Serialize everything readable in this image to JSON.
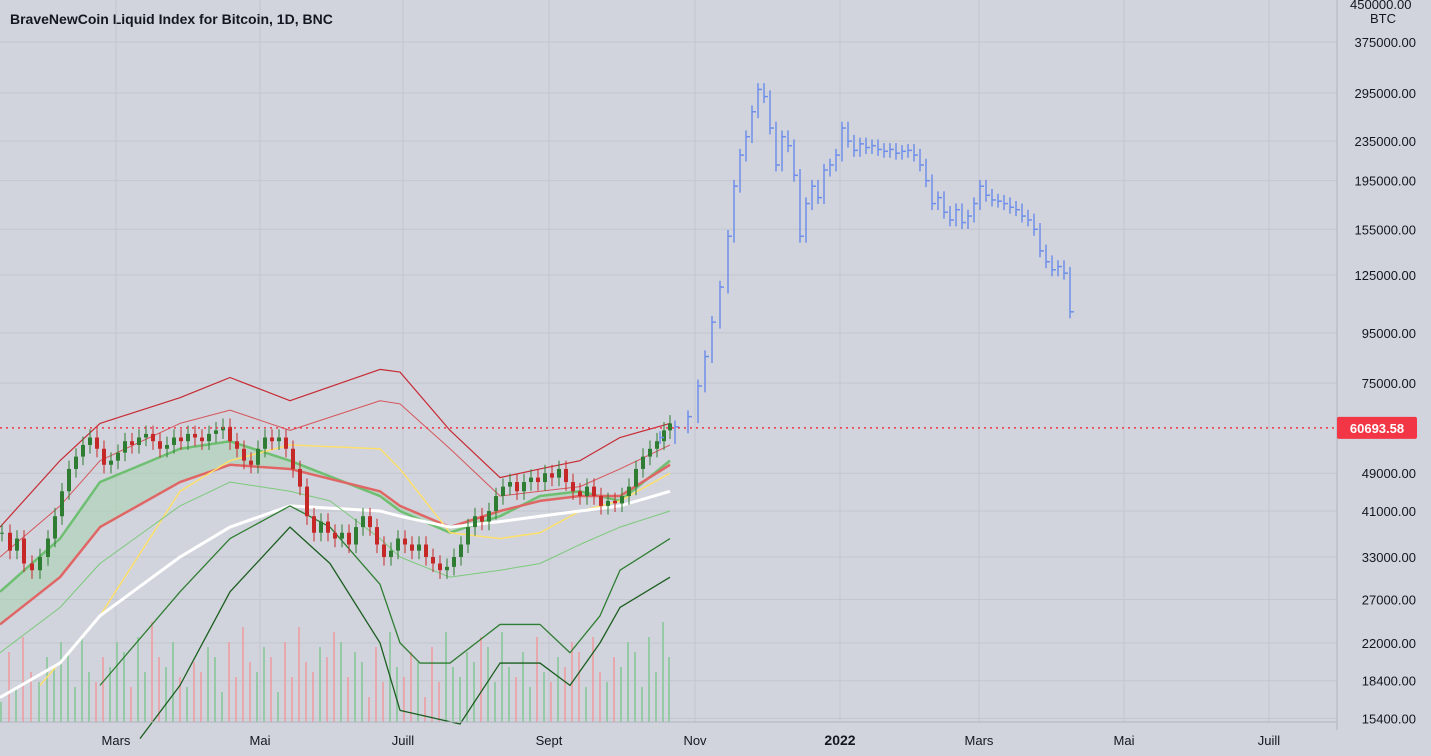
{
  "title": "BraveNewCoin Liquid Index for Bitcoin, 1D, BNC",
  "colors": {
    "background": "#d1d4dc",
    "projection": "#6e8eea",
    "price_line": "#f23645",
    "grid": "#c3c6ce"
  },
  "chart_data": {
    "type": "bar",
    "symbol": "BNC",
    "interval": "1D",
    "scale": "log",
    "y_unit": "BTC",
    "current_price": "60693.58",
    "y_ticks": [
      "375000.00",
      "295000.00",
      "235000.00",
      "195000.00",
      "155000.00",
      "125000.00",
      "95000.00",
      "75000.00",
      "49000.00",
      "41000.00",
      "33000.00",
      "27000.00",
      "22000.00",
      "18400.00",
      "15400.00"
    ],
    "y_top_label": "450000.00",
    "x_ticks": [
      {
        "label": "Mars",
        "bold": false
      },
      {
        "label": "Mai",
        "bold": false
      },
      {
        "label": "Juill",
        "bold": false
      },
      {
        "label": "Sept",
        "bold": false
      },
      {
        "label": "Nov",
        "bold": false
      },
      {
        "label": "2022",
        "bold": true
      },
      {
        "label": "Mars",
        "bold": false
      },
      {
        "label": "Mai",
        "bold": false
      },
      {
        "label": "Juill",
        "bold": false
      }
    ],
    "series": [
      {
        "name": "price",
        "values": [
          [
            0,
            37000
          ],
          [
            8,
            34000
          ],
          [
            15,
            36000
          ],
          [
            22,
            32000
          ],
          [
            30,
            31000
          ],
          [
            38,
            33000
          ],
          [
            46,
            36000
          ],
          [
            53,
            40000
          ],
          [
            60,
            45000
          ],
          [
            67,
            50000
          ],
          [
            74,
            53000
          ],
          [
            81,
            56000
          ],
          [
            88,
            58000
          ],
          [
            95,
            55000
          ],
          [
            102,
            51000
          ],
          [
            109,
            52000
          ],
          [
            116,
            54000
          ],
          [
            123,
            57000
          ],
          [
            130,
            56000
          ],
          [
            137,
            58000
          ],
          [
            144,
            59000
          ],
          [
            151,
            57000
          ],
          [
            158,
            55000
          ],
          [
            165,
            56000
          ],
          [
            172,
            58000
          ],
          [
            179,
            57000
          ],
          [
            186,
            59000
          ],
          [
            193,
            58000
          ],
          [
            200,
            57000
          ],
          [
            207,
            59000
          ],
          [
            214,
            60000
          ],
          [
            221,
            61000
          ],
          [
            228,
            57000
          ],
          [
            235,
            55000
          ],
          [
            242,
            52000
          ],
          [
            249,
            51000
          ],
          [
            256,
            55000
          ],
          [
            263,
            58000
          ],
          [
            270,
            57000
          ],
          [
            277,
            58000
          ],
          [
            284,
            55000
          ],
          [
            291,
            50000
          ],
          [
            298,
            46000
          ],
          [
            305,
            40000
          ],
          [
            312,
            37000
          ],
          [
            319,
            39000
          ],
          [
            326,
            37000
          ],
          [
            333,
            36000
          ],
          [
            340,
            37000
          ],
          [
            347,
            35000
          ],
          [
            354,
            38000
          ],
          [
            361,
            40000
          ],
          [
            368,
            38000
          ],
          [
            375,
            35000
          ],
          [
            382,
            33000
          ],
          [
            389,
            34000
          ],
          [
            396,
            36000
          ],
          [
            403,
            35000
          ],
          [
            410,
            34000
          ],
          [
            417,
            35000
          ],
          [
            424,
            33000
          ],
          [
            431,
            32000
          ],
          [
            438,
            31000
          ],
          [
            445,
            31500
          ],
          [
            452,
            33000
          ],
          [
            459,
            35000
          ],
          [
            466,
            38000
          ],
          [
            473,
            40000
          ],
          [
            480,
            39000
          ],
          [
            487,
            41000
          ],
          [
            494,
            44000
          ],
          [
            501,
            46000
          ],
          [
            508,
            47000
          ],
          [
            515,
            45000
          ],
          [
            522,
            47000
          ],
          [
            529,
            48000
          ],
          [
            536,
            47000
          ],
          [
            543,
            49000
          ],
          [
            550,
            48000
          ],
          [
            557,
            50000
          ],
          [
            564,
            47000
          ],
          [
            571,
            45000
          ],
          [
            578,
            44000
          ],
          [
            585,
            46000
          ],
          [
            592,
            44000
          ],
          [
            599,
            42000
          ],
          [
            606,
            43000
          ],
          [
            613,
            42500
          ],
          [
            620,
            44000
          ],
          [
            627,
            46000
          ],
          [
            634,
            50000
          ],
          [
            641,
            53000
          ],
          [
            648,
            55000
          ],
          [
            655,
            57000
          ],
          [
            662,
            60000
          ],
          [
            668,
            62000
          ]
        ]
      },
      {
        "name": "projection",
        "values": [
          [
            660,
            58000
          ],
          [
            675,
            61000
          ],
          [
            688,
            64000
          ],
          [
            698,
            74000
          ],
          [
            705,
            85000
          ],
          [
            712,
            100000
          ],
          [
            720,
            118000
          ],
          [
            728,
            150000
          ],
          [
            734,
            190000
          ],
          [
            740,
            220000
          ],
          [
            746,
            240000
          ],
          [
            752,
            270000
          ],
          [
            758,
            300000
          ],
          [
            764,
            290000
          ],
          [
            770,
            250000
          ],
          [
            776,
            210000
          ],
          [
            782,
            240000
          ],
          [
            788,
            230000
          ],
          [
            794,
            200000
          ],
          [
            800,
            150000
          ],
          [
            806,
            175000
          ],
          [
            812,
            190000
          ],
          [
            818,
            180000
          ],
          [
            824,
            205000
          ],
          [
            830,
            210000
          ],
          [
            836,
            220000
          ],
          [
            842,
            250000
          ],
          [
            848,
            235000
          ],
          [
            854,
            225000
          ],
          [
            860,
            232000
          ],
          [
            866,
            228000
          ],
          [
            872,
            230000
          ],
          [
            878,
            226000
          ],
          [
            884,
            224000
          ],
          [
            890,
            226000
          ],
          [
            896,
            222000
          ],
          [
            902,
            224000
          ],
          [
            908,
            225000
          ],
          [
            914,
            220000
          ],
          [
            920,
            210000
          ],
          [
            926,
            195000
          ],
          [
            932,
            175000
          ],
          [
            938,
            180000
          ],
          [
            944,
            168000
          ],
          [
            950,
            162000
          ],
          [
            956,
            170000
          ],
          [
            962,
            160000
          ],
          [
            968,
            165000
          ],
          [
            974,
            175000
          ],
          [
            980,
            190000
          ],
          [
            986,
            182000
          ],
          [
            992,
            178000
          ],
          [
            998,
            177000
          ],
          [
            1004,
            175000
          ],
          [
            1010,
            172000
          ],
          [
            1016,
            170000
          ],
          [
            1022,
            165000
          ],
          [
            1028,
            162000
          ],
          [
            1034,
            155000
          ],
          [
            1040,
            140000
          ],
          [
            1046,
            133000
          ],
          [
            1052,
            128000
          ],
          [
            1058,
            130000
          ],
          [
            1064,
            126000
          ],
          [
            1070,
            105000
          ]
        ]
      }
    ],
    "bands": [
      {
        "name": "upper2",
        "values": [
          [
            0,
            38000
          ],
          [
            60,
            52000
          ],
          [
            100,
            62000
          ],
          [
            180,
            70000
          ],
          [
            230,
            77000
          ],
          [
            290,
            69000
          ],
          [
            380,
            80000
          ],
          [
            400,
            79000
          ],
          [
            450,
            60000
          ],
          [
            500,
            48000
          ],
          [
            540,
            50000
          ],
          [
            580,
            52000
          ],
          [
            620,
            58000
          ],
          [
            670,
            62000
          ]
        ]
      },
      {
        "name": "upper1",
        "values": [
          [
            0,
            33000
          ],
          [
            60,
            42000
          ],
          [
            100,
            52000
          ],
          [
            180,
            62000
          ],
          [
            230,
            66000
          ],
          [
            290,
            60000
          ],
          [
            380,
            69000
          ],
          [
            400,
            68000
          ],
          [
            450,
            55000
          ],
          [
            500,
            44000
          ],
          [
            540,
            45000
          ],
          [
            580,
            46000
          ],
          [
            620,
            50000
          ],
          [
            670,
            56000
          ]
        ]
      },
      {
        "name": "green_fast",
        "values": [
          [
            0,
            28000
          ],
          [
            60,
            36000
          ],
          [
            100,
            47000
          ],
          [
            180,
            55000
          ],
          [
            230,
            57000
          ],
          [
            290,
            52000
          ],
          [
            380,
            44000
          ],
          [
            400,
            41000
          ],
          [
            450,
            37000
          ],
          [
            500,
            40000
          ],
          [
            540,
            44000
          ],
          [
            580,
            45000
          ],
          [
            620,
            43000
          ],
          [
            670,
            52000
          ]
        ]
      },
      {
        "name": "red_slow",
        "values": [
          [
            0,
            24000
          ],
          [
            60,
            30000
          ],
          [
            100,
            38000
          ],
          [
            180,
            47000
          ],
          [
            230,
            51000
          ],
          [
            290,
            50000
          ],
          [
            380,
            45000
          ],
          [
            400,
            42000
          ],
          [
            450,
            38000
          ],
          [
            500,
            41000
          ],
          [
            540,
            43000
          ],
          [
            580,
            44000
          ],
          [
            620,
            44000
          ],
          [
            670,
            51000
          ]
        ]
      },
      {
        "name": "yellow",
        "values": [
          [
            40,
            18000
          ],
          [
            100,
            25000
          ],
          [
            180,
            45000
          ],
          [
            230,
            52000
          ],
          [
            290,
            56000
          ],
          [
            380,
            55000
          ],
          [
            400,
            50000
          ],
          [
            450,
            37000
          ],
          [
            500,
            36000
          ],
          [
            540,
            37000
          ],
          [
            580,
            41000
          ],
          [
            620,
            43000
          ],
          [
            670,
            49000
          ]
        ]
      },
      {
        "name": "white",
        "values": [
          [
            0,
            17000
          ],
          [
            60,
            20000
          ],
          [
            100,
            25000
          ],
          [
            180,
            33000
          ],
          [
            230,
            38000
          ],
          [
            290,
            42000
          ],
          [
            380,
            41000
          ],
          [
            400,
            40000
          ],
          [
            450,
            38000
          ],
          [
            500,
            39000
          ],
          [
            540,
            40000
          ],
          [
            580,
            41000
          ],
          [
            620,
            42000
          ],
          [
            670,
            45000
          ]
        ]
      },
      {
        "name": "lower1",
        "values": [
          [
            0,
            21000
          ],
          [
            60,
            26000
          ],
          [
            100,
            32000
          ],
          [
            180,
            42000
          ],
          [
            230,
            47000
          ],
          [
            290,
            45000
          ],
          [
            330,
            43000
          ],
          [
            380,
            36000
          ],
          [
            400,
            33000
          ],
          [
            450,
            30000
          ],
          [
            500,
            31000
          ],
          [
            540,
            32000
          ],
          [
            580,
            35000
          ],
          [
            620,
            38000
          ],
          [
            670,
            41000
          ]
        ]
      },
      {
        "name": "lower2",
        "values": [
          [
            100,
            18000
          ],
          [
            180,
            28000
          ],
          [
            230,
            36000
          ],
          [
            290,
            42000
          ],
          [
            330,
            38000
          ],
          [
            380,
            29000
          ],
          [
            400,
            22000
          ],
          [
            420,
            20000
          ],
          [
            450,
            20000
          ],
          [
            500,
            24000
          ],
          [
            540,
            24000
          ],
          [
            570,
            21000
          ],
          [
            600,
            25000
          ],
          [
            620,
            31000
          ],
          [
            670,
            36000
          ]
        ]
      },
      {
        "name": "lower3",
        "values": [
          [
            140,
            14000
          ],
          [
            180,
            18000
          ],
          [
            230,
            28000
          ],
          [
            290,
            38000
          ],
          [
            330,
            32000
          ],
          [
            380,
            22000
          ],
          [
            400,
            16000
          ],
          [
            460,
            15000
          ],
          [
            500,
            20000
          ],
          [
            540,
            20000
          ],
          [
            570,
            18000
          ],
          [
            600,
            22000
          ],
          [
            620,
            26000
          ],
          [
            670,
            30000
          ]
        ]
      }
    ]
  }
}
